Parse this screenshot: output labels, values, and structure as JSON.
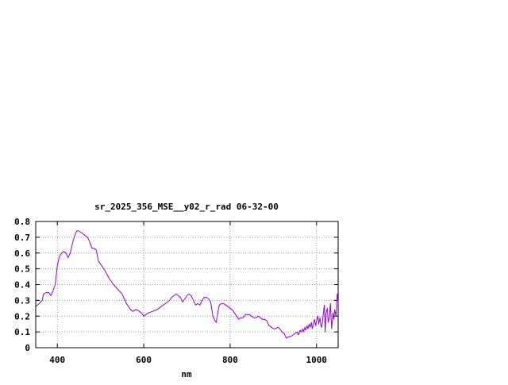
{
  "chart_data": {
    "type": "line",
    "title": "sr_2025_356_MSE__y02_r_rad 06-32-00",
    "xlabel": "nm",
    "ylabel": "",
    "xlim": [
      350,
      1050
    ],
    "ylim": [
      0,
      0.8
    ],
    "x_ticks": [
      400,
      600,
      800,
      1000
    ],
    "x_tick_labels": [
      "400",
      "600",
      "800",
      "1000"
    ],
    "y_ticks": [
      0,
      0.1,
      0.2,
      0.3,
      0.4,
      0.5,
      0.6,
      0.7,
      0.8
    ],
    "y_tick_labels": [
      "0",
      "0.1",
      "0.2",
      "0.3",
      "0.4",
      "0.5",
      "0.6",
      "0.7",
      "0.8"
    ],
    "grid": true,
    "legend": false,
    "series": [
      {
        "color": "#9400d3",
        "x": [
          350,
          358,
          365,
          368,
          375,
          380,
          385,
          390,
          395,
          400,
          405,
          410,
          415,
          420,
          425,
          430,
          435,
          440,
          445,
          450,
          455,
          460,
          465,
          470,
          475,
          480,
          485,
          490,
          495,
          500,
          505,
          510,
          520,
          530,
          540,
          550,
          555,
          560,
          565,
          570,
          575,
          580,
          585,
          590,
          595,
          600,
          605,
          610,
          620,
          630,
          640,
          650,
          660,
          665,
          670,
          675,
          680,
          685,
          690,
          695,
          700,
          705,
          710,
          715,
          720,
          725,
          730,
          735,
          740,
          745,
          750,
          755,
          760,
          765,
          768,
          770,
          772,
          775,
          780,
          785,
          790,
          795,
          800,
          805,
          810,
          815,
          820,
          825,
          830,
          835,
          840,
          845,
          850,
          855,
          860,
          865,
          870,
          875,
          880,
          885,
          890,
          895,
          900,
          905,
          910,
          915,
          920,
          925,
          930,
          935,
          940,
          945,
          950,
          955,
          958,
          962,
          965,
          968,
          970,
          973,
          975,
          978,
          980,
          983,
          985,
          988,
          990,
          993,
          995,
          998,
          1000,
          1003,
          1005,
          1008,
          1010,
          1012,
          1015,
          1018,
          1020,
          1022,
          1025,
          1027,
          1030,
          1032,
          1035,
          1038,
          1040,
          1042,
          1045,
          1048,
          1050
        ],
        "y": [
          0.26,
          0.28,
          0.3,
          0.34,
          0.35,
          0.35,
          0.33,
          0.36,
          0.4,
          0.52,
          0.58,
          0.6,
          0.61,
          0.6,
          0.57,
          0.6,
          0.66,
          0.71,
          0.74,
          0.74,
          0.73,
          0.72,
          0.71,
          0.7,
          0.67,
          0.63,
          0.63,
          0.62,
          0.55,
          0.53,
          0.51,
          0.49,
          0.44,
          0.4,
          0.37,
          0.34,
          0.31,
          0.28,
          0.26,
          0.24,
          0.23,
          0.24,
          0.24,
          0.23,
          0.22,
          0.2,
          0.21,
          0.22,
          0.23,
          0.24,
          0.26,
          0.28,
          0.3,
          0.32,
          0.33,
          0.34,
          0.33,
          0.32,
          0.29,
          0.31,
          0.33,
          0.34,
          0.33,
          0.3,
          0.27,
          0.28,
          0.27,
          0.3,
          0.32,
          0.32,
          0.31,
          0.29,
          0.2,
          0.17,
          0.16,
          0.2,
          0.23,
          0.27,
          0.28,
          0.28,
          0.27,
          0.26,
          0.25,
          0.24,
          0.22,
          0.2,
          0.18,
          0.19,
          0.19,
          0.21,
          0.21,
          0.21,
          0.2,
          0.19,
          0.19,
          0.2,
          0.19,
          0.18,
          0.18,
          0.17,
          0.14,
          0.13,
          0.12,
          0.12,
          0.13,
          0.12,
          0.1,
          0.09,
          0.06,
          0.07,
          0.07,
          0.08,
          0.09,
          0.1,
          0.08,
          0.11,
          0.1,
          0.12,
          0.1,
          0.13,
          0.11,
          0.14,
          0.12,
          0.15,
          0.13,
          0.16,
          0.12,
          0.15,
          0.18,
          0.14,
          0.17,
          0.2,
          0.15,
          0.19,
          0.14,
          0.13,
          0.2,
          0.27,
          0.1,
          0.22,
          0.25,
          0.16,
          0.2,
          0.28,
          0.12,
          0.22,
          0.18,
          0.24,
          0.2,
          0.34,
          0.28
        ]
      }
    ]
  }
}
